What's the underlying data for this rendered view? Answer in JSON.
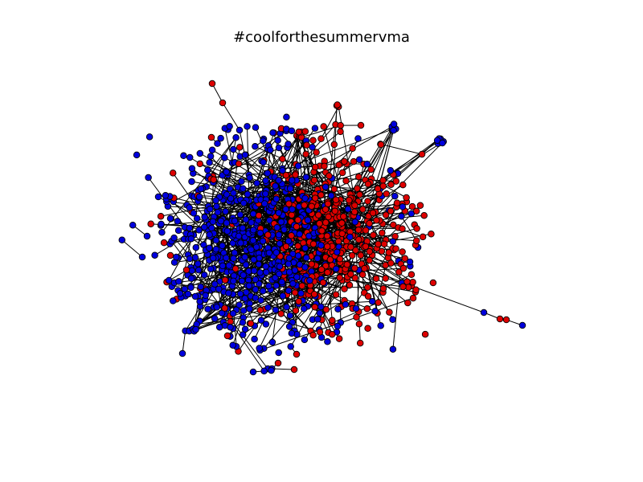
{
  "title": "#coolforthesummervma",
  "node_colors": {
    "group_a": "#0000dd",
    "group_b": "#dd0000",
    "stroke": "#000000",
    "edge": "#000000"
  }
}
